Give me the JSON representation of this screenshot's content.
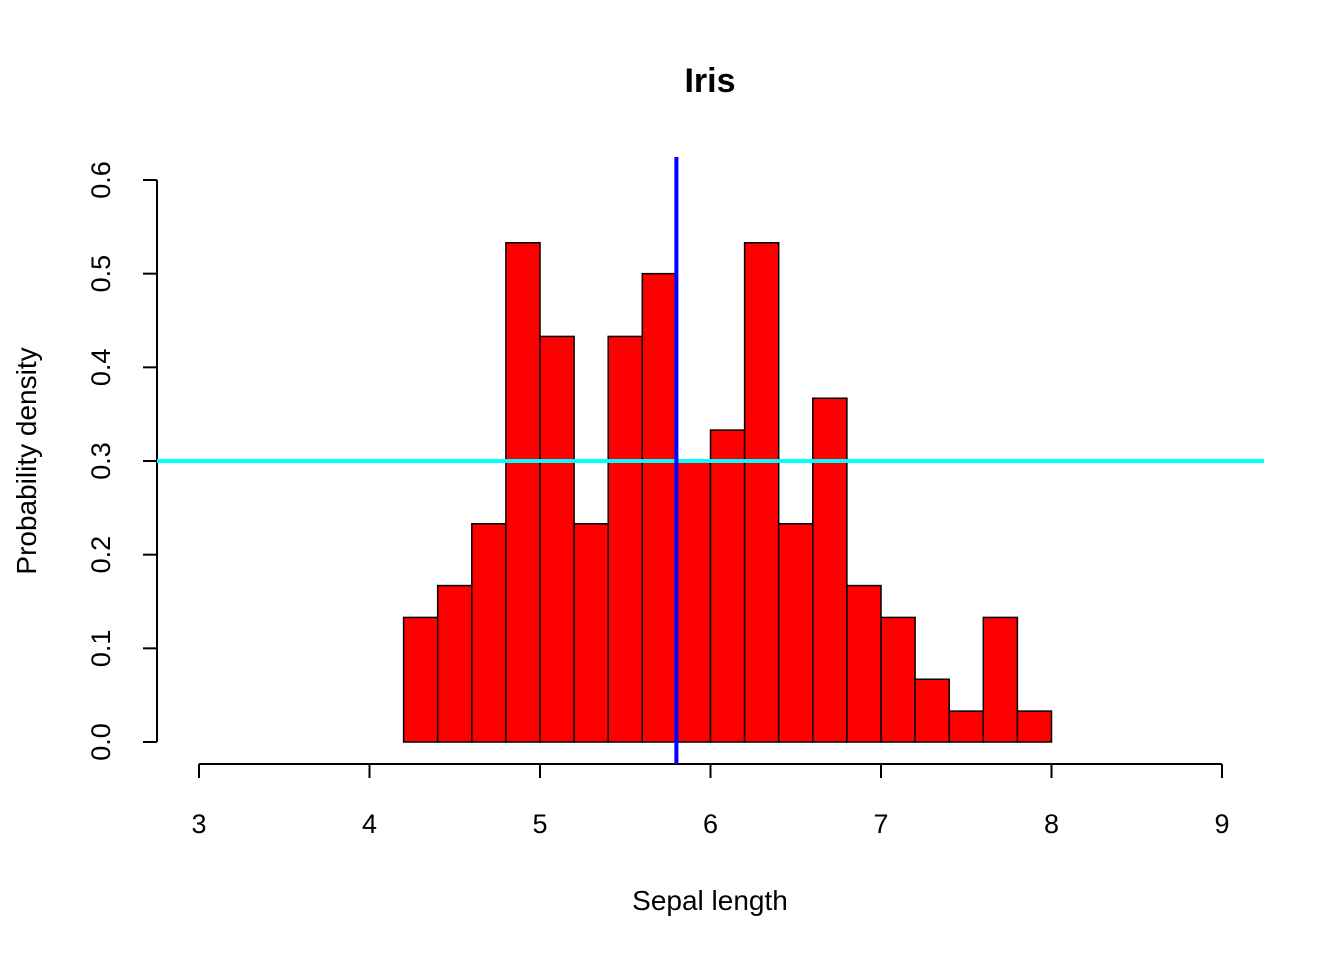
{
  "chart_data": {
    "type": "bar",
    "title": "Iris",
    "xlabel": "Sepal length",
    "ylabel": "Probability density",
    "xlim": [
      3,
      9
    ],
    "ylim": [
      0,
      0.6
    ],
    "x_ticks": [
      "3",
      "4",
      "5",
      "6",
      "7",
      "8",
      "9"
    ],
    "y_ticks": [
      "0.0",
      "0.1",
      "0.2",
      "0.3",
      "0.4",
      "0.5",
      "0.6"
    ],
    "bin_width": 0.2,
    "bins": [
      {
        "start": 4.2,
        "end": 4.4,
        "density": 0.133
      },
      {
        "start": 4.4,
        "end": 4.6,
        "density": 0.167
      },
      {
        "start": 4.6,
        "end": 4.8,
        "density": 0.233
      },
      {
        "start": 4.8,
        "end": 5.0,
        "density": 0.533
      },
      {
        "start": 5.0,
        "end": 5.2,
        "density": 0.433
      },
      {
        "start": 5.2,
        "end": 5.4,
        "density": 0.233
      },
      {
        "start": 5.4,
        "end": 5.6,
        "density": 0.433
      },
      {
        "start": 5.6,
        "end": 5.8,
        "density": 0.5
      },
      {
        "start": 5.8,
        "end": 6.0,
        "density": 0.3
      },
      {
        "start": 6.0,
        "end": 6.2,
        "density": 0.333
      },
      {
        "start": 6.2,
        "end": 6.4,
        "density": 0.533
      },
      {
        "start": 6.4,
        "end": 6.6,
        "density": 0.233
      },
      {
        "start": 6.6,
        "end": 6.8,
        "density": 0.367
      },
      {
        "start": 6.8,
        "end": 7.0,
        "density": 0.167
      },
      {
        "start": 7.0,
        "end": 7.2,
        "density": 0.133
      },
      {
        "start": 7.2,
        "end": 7.4,
        "density": 0.067
      },
      {
        "start": 7.4,
        "end": 7.6,
        "density": 0.033
      },
      {
        "start": 7.6,
        "end": 7.8,
        "density": 0.133
      },
      {
        "start": 7.8,
        "end": 8.0,
        "density": 0.033
      }
    ],
    "vertical_line": {
      "x": 5.8,
      "color": "#0000ff"
    },
    "horizontal_line": {
      "y": 0.3,
      "color": "#00ffff"
    },
    "bar_color": "#ff0000",
    "grid": false
  }
}
